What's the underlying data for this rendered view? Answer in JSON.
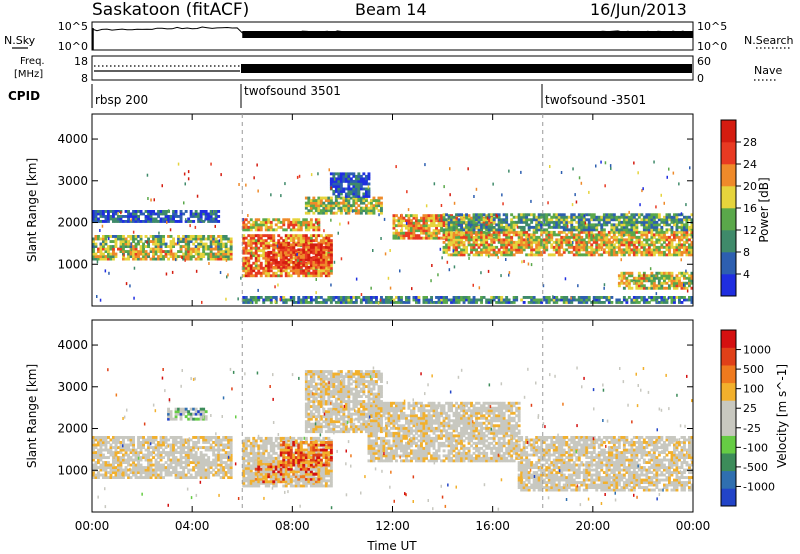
{
  "header": {
    "site": "Saskatoon (fitACF)",
    "beam": "Beam 14",
    "date": "16/Jun/2013"
  },
  "labels": {
    "nsky": "N.Sky",
    "nsearch": "N.Search",
    "freq_line1": "Freq.",
    "freq_line2": "[MHz]",
    "nave": "Nave",
    "cpid": "CPID",
    "xlabel": "Time UT"
  },
  "noise_axis": {
    "left_ticks": [
      "10^5",
      "10^0"
    ],
    "right_ticks": [
      "10^5",
      "10^0"
    ]
  },
  "freq_axis": {
    "left_ticks": [
      "18",
      "8"
    ],
    "right_ticks": [
      "60",
      "0"
    ]
  },
  "cpid_segments": [
    {
      "label": "rbsp 200",
      "start_hour": 0
    },
    {
      "label": "twofsound 3501",
      "start_hour": 6
    },
    {
      "label": "twofsound -3501",
      "start_hour": 18
    }
  ],
  "x_axis": {
    "ticks": [
      "00:00",
      "04:00",
      "08:00",
      "12:00",
      "16:00",
      "20:00",
      "00:00"
    ],
    "range_hours": [
      0,
      24
    ],
    "dashed_lines_hours": [
      6,
      18
    ]
  },
  "chart_data": [
    {
      "type": "heatmap",
      "quantity": "Power",
      "ylabel": "Slant Range [km]",
      "ylim": [
        0,
        4600
      ],
      "yticks": [
        "1000",
        "2000",
        "3000",
        "4000"
      ],
      "colorbar": {
        "label": "Power [dB]",
        "ticks": [
          "4",
          "8",
          "12",
          "16",
          "20",
          "24",
          "28"
        ],
        "colors": [
          "#1f2ee0",
          "#2d5fb0",
          "#3f8a6a",
          "#5aa84a",
          "#e6d43c",
          "#ef8a2a",
          "#e83a22",
          "#d41c10"
        ]
      },
      "bands": [
        {
          "t0": 0,
          "t1": 5.5,
          "r0": 1100,
          "r1": 1400,
          "level": 0.55
        },
        {
          "t0": 0,
          "t1": 5.5,
          "r0": 1400,
          "r1": 1700,
          "level": 0.45
        },
        {
          "t0": 0,
          "t1": 5.0,
          "r0": 2000,
          "r1": 2300,
          "level": 0.15
        },
        {
          "t0": 6,
          "t1": 9.5,
          "r0": 700,
          "r1": 1700,
          "level": 0.7
        },
        {
          "t0": 7,
          "t1": 9.5,
          "r0": 900,
          "r1": 1500,
          "level": 0.85
        },
        {
          "t0": 6,
          "t1": 9,
          "r0": 1800,
          "r1": 2100,
          "level": 0.6
        },
        {
          "t0": 8.5,
          "t1": 11.5,
          "r0": 2200,
          "r1": 2600,
          "level": 0.5
        },
        {
          "t0": 9.5,
          "t1": 11,
          "r0": 2600,
          "r1": 3200,
          "level": 0.15
        },
        {
          "t0": 12,
          "t1": 16,
          "r0": 1600,
          "r1": 2200,
          "level": 0.65
        },
        {
          "t0": 14,
          "t1": 24,
          "r0": 1200,
          "r1": 1800,
          "level": 0.6
        },
        {
          "t0": 14,
          "t1": 24,
          "r0": 1800,
          "r1": 2200,
          "level": 0.35
        },
        {
          "t0": 21,
          "t1": 24,
          "r0": 400,
          "r1": 800,
          "level": 0.55
        },
        {
          "t0": 6,
          "t1": 24,
          "r0": 60,
          "r1": 200,
          "level": 0.3
        }
      ]
    },
    {
      "type": "heatmap",
      "quantity": "Velocity",
      "ylabel": "Slant Range [km]",
      "ylim": [
        0,
        4600
      ],
      "yticks": [
        "1000",
        "2000",
        "3000",
        "4000"
      ],
      "colorbar": {
        "label": "Velocity [m s^-1]",
        "ticks": [
          "1000",
          "500",
          "100",
          "25",
          "-25",
          "-100",
          "-500",
          "-1000"
        ],
        "colors": [
          "#2244c8",
          "#2f6fb0",
          "#3c8c5a",
          "#66cc44",
          "#c8c8c0",
          "#c8c8c0",
          "#f2b02c",
          "#ef7a1e",
          "#e04018",
          "#d41010"
        ]
      },
      "bands": [
        {
          "t0": 0,
          "t1": 5.5,
          "r0": 800,
          "r1": 1800,
          "level": 0.5
        },
        {
          "t0": 3,
          "t1": 4.5,
          "r0": 2200,
          "r1": 2500,
          "level": 0.15
        },
        {
          "t0": 6,
          "t1": 9.5,
          "r0": 600,
          "r1": 1800,
          "level": 0.5
        },
        {
          "t0": 6.5,
          "t1": 9,
          "r0": 700,
          "r1": 1200,
          "level": 0.7
        },
        {
          "t0": 7.5,
          "t1": 9.5,
          "r0": 1100,
          "r1": 1700,
          "level": 0.85
        },
        {
          "t0": 8.5,
          "t1": 11.5,
          "r0": 1900,
          "r1": 3400,
          "level": 0.5
        },
        {
          "t0": 11,
          "t1": 17,
          "r0": 1200,
          "r1": 2600,
          "level": 0.5
        },
        {
          "t0": 17,
          "t1": 24,
          "r0": 500,
          "r1": 1800,
          "level": 0.5
        }
      ]
    }
  ]
}
